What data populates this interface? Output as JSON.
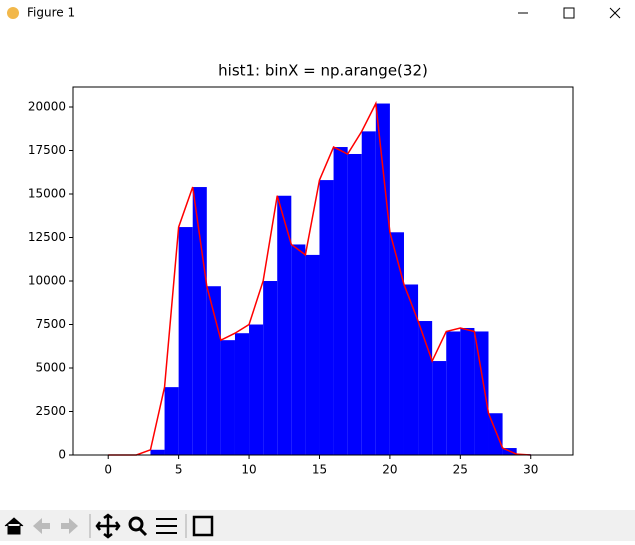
{
  "window_title": "Figure 1",
  "chart_data": {
    "type": "histogram",
    "title": "hist1: binX = np.arange(32)",
    "bins": [
      0,
      1,
      2,
      3,
      4,
      5,
      6,
      7,
      8,
      9,
      10,
      11,
      12,
      13,
      14,
      15,
      16,
      17,
      18,
      19,
      20,
      21,
      22,
      23,
      24,
      25,
      26,
      27,
      28,
      29,
      30,
      31
    ],
    "values": [
      0,
      0,
      0,
      300,
      3900,
      13100,
      15400,
      9700,
      6600,
      7000,
      7500,
      10000,
      14900,
      12100,
      11500,
      15800,
      17700,
      17300,
      18600,
      20200,
      12800,
      9800,
      7700,
      5400,
      7100,
      7300,
      7100,
      2400,
      400,
      50,
      0
    ],
    "color": "#0000ff",
    "line": {
      "x": [
        0,
        1,
        2,
        3,
        4,
        5,
        6,
        7,
        8,
        9,
        10,
        11,
        12,
        13,
        14,
        15,
        16,
        17,
        18,
        19,
        20,
        21,
        22,
        23,
        24,
        25,
        26,
        27,
        28,
        29,
        30
      ],
      "values": [
        0,
        0,
        0,
        300,
        3900,
        13100,
        15400,
        9700,
        6600,
        7000,
        7500,
        10000,
        14900,
        12100,
        11500,
        15800,
        17700,
        17300,
        18600,
        20200,
        12800,
        9800,
        7700,
        5400,
        7100,
        7300,
        7100,
        2400,
        400,
        50,
        0
      ],
      "color": "#ff0000"
    },
    "xlim": [
      -2.5,
      33
    ],
    "ylim": [
      0,
      21150
    ],
    "xticks": [
      0,
      5,
      10,
      15,
      20,
      25,
      30
    ],
    "yticks": [
      0,
      2500,
      5000,
      7500,
      10000,
      12500,
      15000,
      17500,
      20000
    ]
  }
}
